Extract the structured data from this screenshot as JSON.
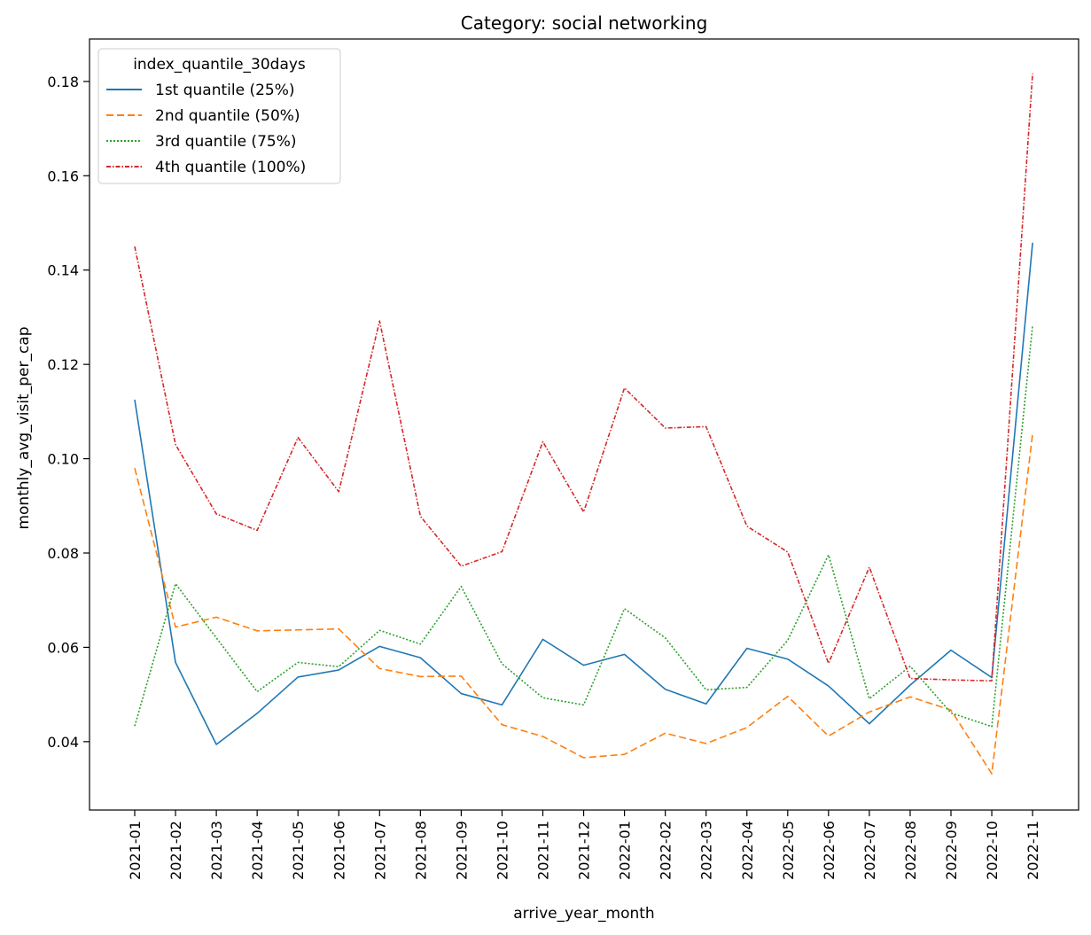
{
  "chart_data": {
    "type": "line",
    "title": "Category: social networking",
    "xlabel": "arrive_year_month",
    "ylabel": "monthly_avg_visit_per_cap",
    "x": [
      "2021-01",
      "2021-02",
      "2021-03",
      "2021-04",
      "2021-05",
      "2021-06",
      "2021-07",
      "2021-08",
      "2021-09",
      "2021-10",
      "2021-11",
      "2021-12",
      "2022-01",
      "2022-02",
      "2022-03",
      "2022-04",
      "2022-05",
      "2022-06",
      "2022-07",
      "2022-08",
      "2022-09",
      "2022-10",
      "2022-11"
    ],
    "ylim": [
      0.0255,
      0.189
    ],
    "yticks": [
      0.04,
      0.06,
      0.08,
      0.1,
      0.12,
      0.14,
      0.16,
      0.18
    ],
    "ytick_labels": [
      "0.04",
      "0.06",
      "0.08",
      "0.10",
      "0.12",
      "0.14",
      "0.16",
      "0.18"
    ],
    "legend": {
      "title": "index_quantile_30days",
      "placement": "upper-left"
    },
    "series": [
      {
        "name": "1st quantile (25%)",
        "color": "#1f77b4",
        "dash": "solid",
        "values": [
          0.1125,
          0.0568,
          0.0394,
          0.046,
          0.0537,
          0.0552,
          0.0602,
          0.0578,
          0.0502,
          0.0478,
          0.0617,
          0.0562,
          0.0585,
          0.0511,
          0.048,
          0.0598,
          0.0575,
          0.0518,
          0.0438,
          0.052,
          0.0594,
          0.0536,
          0.1458
        ]
      },
      {
        "name": "2nd quantile (50%)",
        "color": "#ff7f0e",
        "dash": "dashed",
        "values": [
          0.098,
          0.0643,
          0.0664,
          0.0635,
          0.0637,
          0.0639,
          0.0555,
          0.0538,
          0.0539,
          0.0436,
          0.0411,
          0.0366,
          0.0373,
          0.0418,
          0.0396,
          0.043,
          0.0496,
          0.0412,
          0.0463,
          0.0495,
          0.0467,
          0.0332,
          0.1053
        ]
      },
      {
        "name": "3rd quantile (75%)",
        "color": "#2ca02c",
        "dash": "dotted",
        "values": [
          0.0433,
          0.0735,
          0.062,
          0.0506,
          0.0568,
          0.0559,
          0.0636,
          0.0607,
          0.0729,
          0.0565,
          0.0493,
          0.0478,
          0.0682,
          0.062,
          0.051,
          0.0515,
          0.0615,
          0.0796,
          0.0491,
          0.056,
          0.0461,
          0.0432,
          0.1283
        ]
      },
      {
        "name": "4th quantile (100%)",
        "color": "#d62728",
        "dash": "dashdot",
        "values": [
          0.145,
          0.103,
          0.0883,
          0.0848,
          0.1045,
          0.093,
          0.1292,
          0.0878,
          0.0772,
          0.0803,
          0.1036,
          0.0887,
          0.115,
          0.1065,
          0.1068,
          0.0857,
          0.0802,
          0.0566,
          0.077,
          0.0534,
          0.0531,
          0.0529,
          0.1817
        ]
      }
    ]
  }
}
